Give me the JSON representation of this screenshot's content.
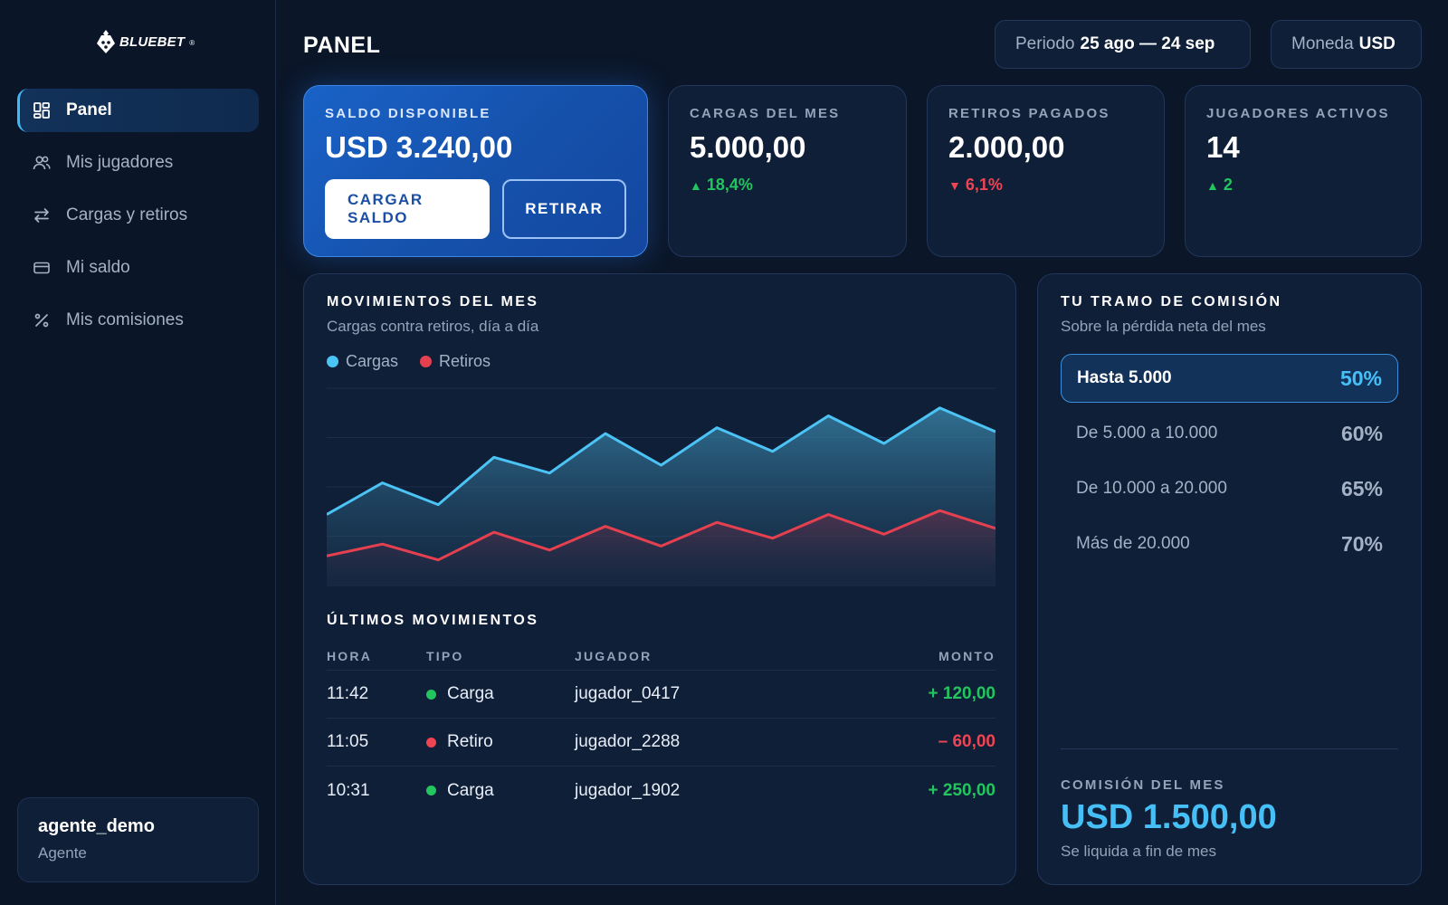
{
  "brand": {
    "name": "BLUEBET",
    "reg": "®"
  },
  "sidebar": {
    "items": [
      {
        "label": "Panel",
        "icon": "dashboard-icon"
      },
      {
        "label": "Mis jugadores",
        "icon": "users-icon"
      },
      {
        "label": "Cargas y retiros",
        "icon": "transfer-icon"
      },
      {
        "label": "Mi saldo",
        "icon": "card-icon"
      },
      {
        "label": "Mis comisiones",
        "icon": "percent-icon"
      }
    ],
    "active_index": 0,
    "user": {
      "name": "agente_demo",
      "role": "Agente"
    }
  },
  "header": {
    "title": "PANEL",
    "period_label": "Periodo",
    "period_value": "25 ago — 24 sep",
    "currency_label": "Moneda",
    "currency_value": "USD"
  },
  "kpis": {
    "balance": {
      "label": "SALDO DISPONIBLE",
      "value": "USD 3.240,00",
      "load_button": "CARGAR SALDO",
      "withdraw_button": "RETIRAR"
    },
    "loads": {
      "label": "CARGAS DEL MES",
      "value": "5.000,00",
      "delta": "18,4%",
      "direction": "up"
    },
    "withdrawals": {
      "label": "RETIROS PAGADOS",
      "value": "2.000,00",
      "delta": "6,1%",
      "direction": "down"
    },
    "players": {
      "label": "JUGADORES ACTIVOS",
      "value": "14",
      "delta": "2",
      "direction": "up"
    }
  },
  "movements": {
    "title": "MOVIMIENTOS DEL MES",
    "subtitle": "Cargas contra retiros, día a día",
    "chart_data": {
      "type": "area",
      "title": "MOVIMIENTOS DEL MES",
      "subtitle": "Cargas contra retiros, día a día",
      "xlabel": "",
      "ylabel": "",
      "ylim": [
        0,
        100
      ],
      "grid": true,
      "legend": "top-left",
      "x": [
        1,
        2,
        3,
        4,
        5,
        6,
        7,
        8,
        9,
        10,
        11,
        12,
        13
      ],
      "series": [
        {
          "name": "Cargas",
          "color": "#4cc3f5",
          "values": [
            36,
            52,
            41,
            65,
            57,
            77,
            61,
            80,
            68,
            86,
            72,
            90,
            78
          ]
        },
        {
          "name": "Retiros",
          "color": "#e5404f",
          "values": [
            15,
            21,
            13,
            27,
            18,
            30,
            20,
            32,
            24,
            36,
            26,
            38,
            29
          ]
        }
      ]
    },
    "table": {
      "title": "ÚLTIMOS MOVIMIENTOS",
      "columns": [
        "HORA",
        "TIPO",
        "JUGADOR",
        "MONTO"
      ],
      "rows": [
        {
          "time": "11:42",
          "type": "Carga",
          "player": "jugador_0417",
          "amount": "+ 120,00",
          "kind": "in"
        },
        {
          "time": "11:05",
          "type": "Retiro",
          "player": "jugador_2288",
          "amount": "– 60,00",
          "kind": "out"
        },
        {
          "time": "10:31",
          "type": "Carga",
          "player": "jugador_1902",
          "amount": "+ 250,00",
          "kind": "in"
        }
      ]
    }
  },
  "commission": {
    "title": "TU TRAMO DE COMISIÓN",
    "subtitle": "Sobre la pérdida neta del mes",
    "tiers": [
      {
        "range": "Hasta 5.000",
        "pct": "50%",
        "active": true
      },
      {
        "range": "De 5.000 a 10.000",
        "pct": "60%",
        "active": false
      },
      {
        "range": "De 10.000 a 20.000",
        "pct": "65%",
        "active": false
      },
      {
        "range": "Más de 20.000",
        "pct": "70%",
        "active": false
      }
    ],
    "month_label": "COMISIÓN DEL MES",
    "month_value": "USD 1.500,00",
    "note": "Se liquida a fin de mes"
  },
  "colors": {
    "accent": "#46bff7",
    "positive": "#22c55e",
    "negative": "#ef4452",
    "background": "#0b1629",
    "card": "#0f1f38"
  }
}
